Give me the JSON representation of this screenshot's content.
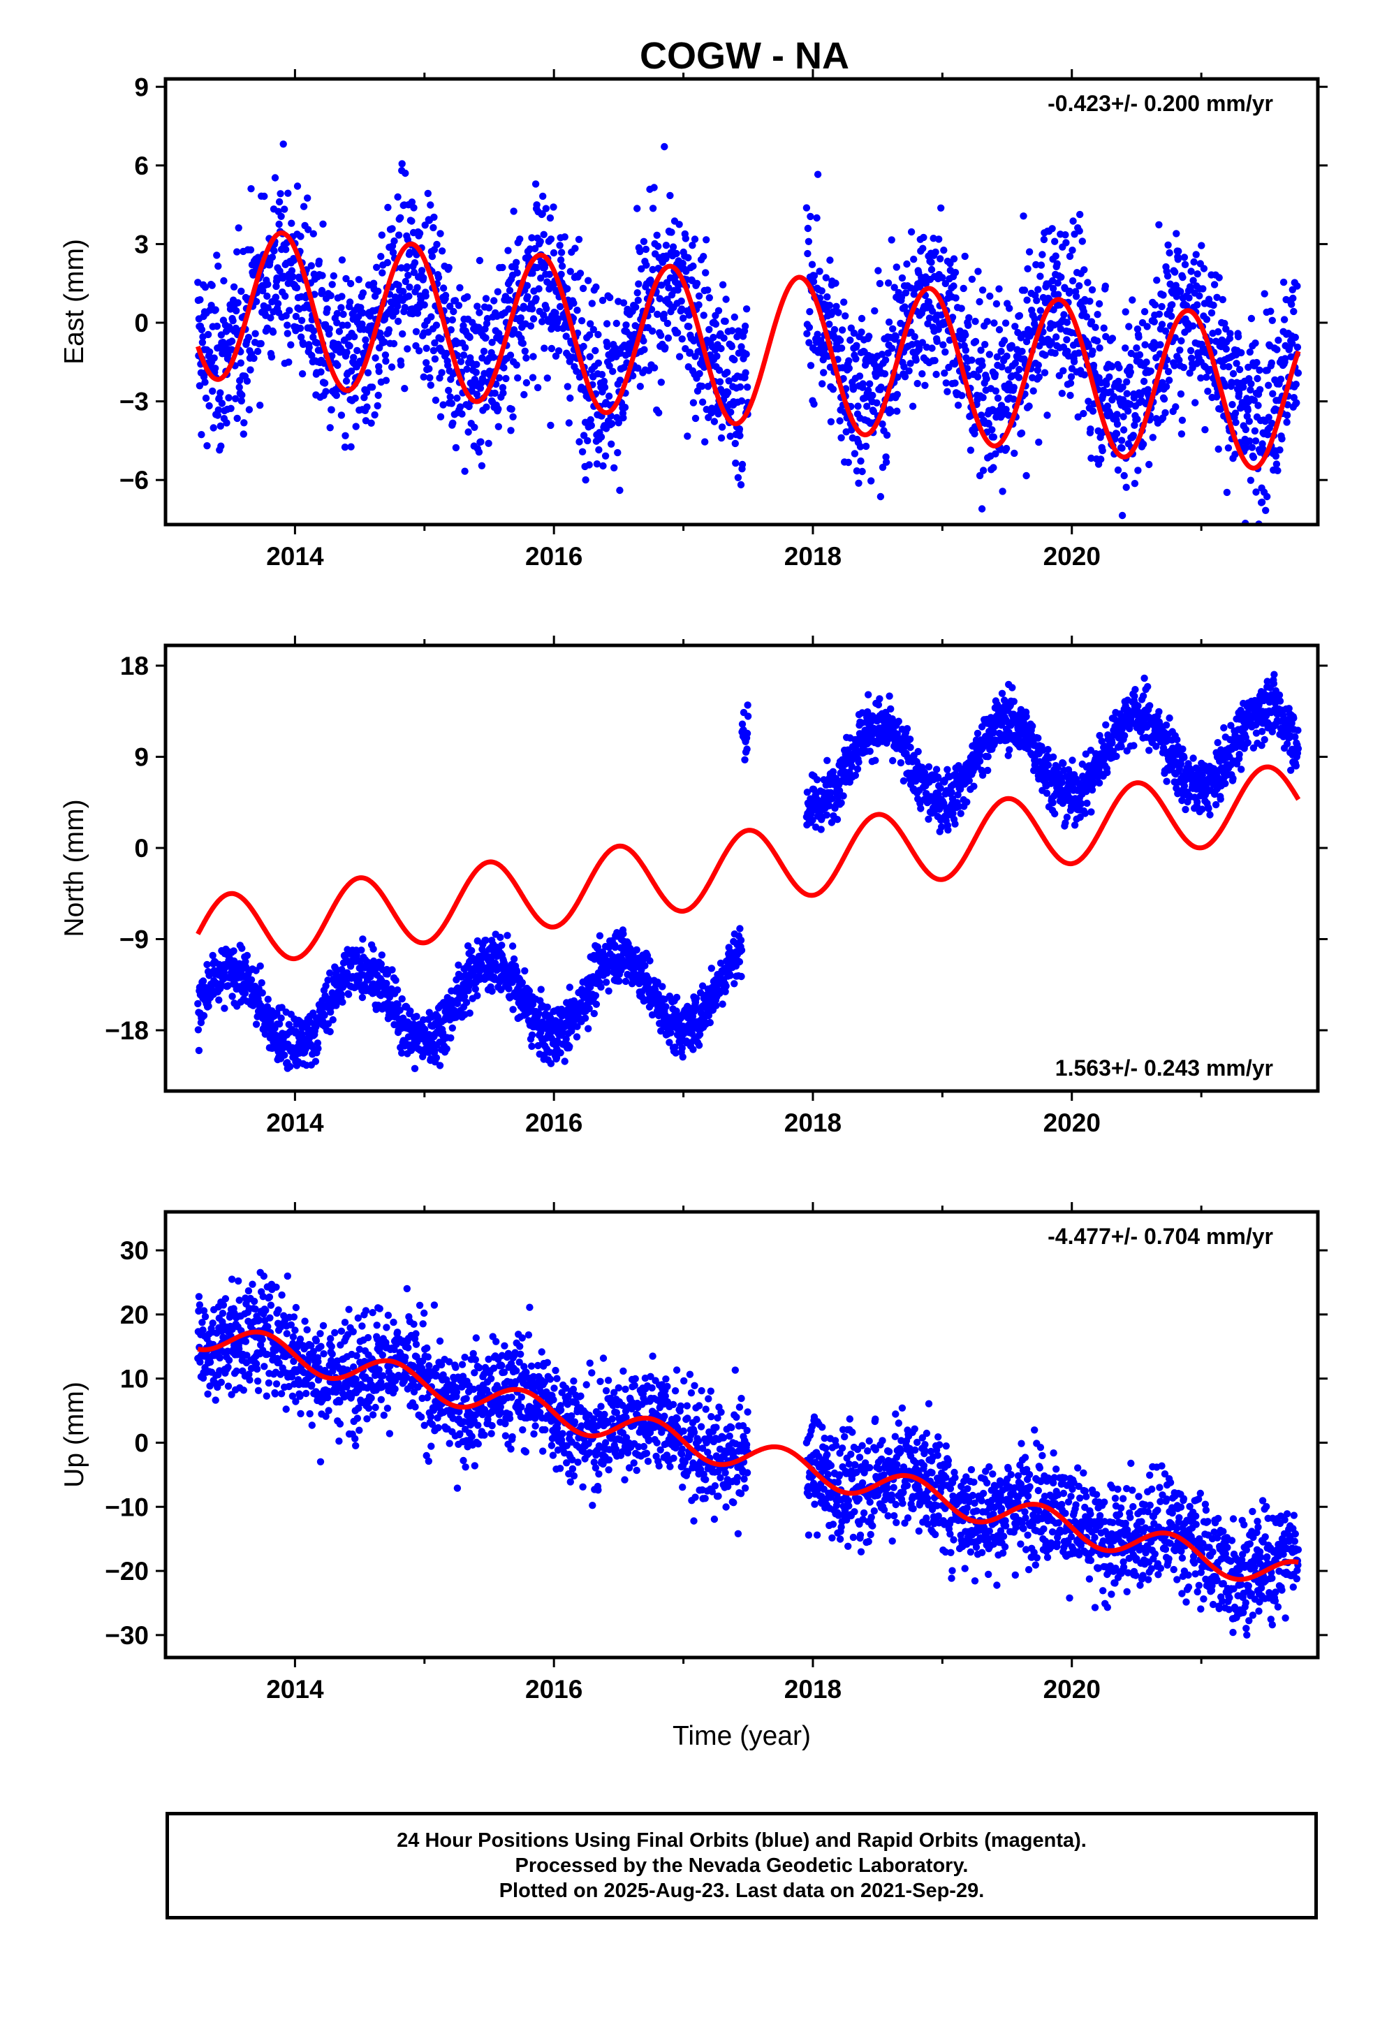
{
  "title": "COGW - NA",
  "colors": {
    "data": "#0000ff",
    "model": "#ff0000",
    "axes": "#000000"
  },
  "chart_data": [
    {
      "type": "scatter",
      "panel": "east",
      "ylabel": "East (mm)",
      "xlabel": "",
      "rate_label": "-0.423+/- 0.200 mm/yr",
      "rate_position": "top-right",
      "xlim": [
        2013.0,
        2021.9
      ],
      "ylim": [
        -7.7,
        9.3
      ],
      "xticks": [
        2014,
        2016,
        2018,
        2020
      ],
      "xtick_labels": [
        "2014",
        "2016",
        "2018",
        "2020"
      ],
      "yticks": [
        -6,
        -3,
        0,
        3,
        6,
        9
      ],
      "ytick_labels": [
        "−6",
        "−3",
        "0",
        "3",
        "6",
        "9"
      ],
      "grid": false,
      "data_gap": [
        2017.5,
        2017.95
      ],
      "series": [
        {
          "kind": "points",
          "trend": [
            2013.25,
            0.4,
            2021.75,
            -1.6
          ],
          "annual_amplitude": 1.9,
          "phase_year": 2013.9,
          "noise": 1.7
        },
        {
          "kind": "model",
          "rate": -0.423,
          "ref": [
            2013.25,
            0.8
          ],
          "annual_amplitude": 2.9,
          "phase_year": 2013.9
        }
      ]
    },
    {
      "type": "scatter",
      "panel": "north",
      "ylabel": "North (mm)",
      "xlabel": "",
      "rate_label": "1.563+/- 0.243 mm/yr",
      "rate_position": "bottom-right",
      "xlim": [
        2013.0,
        2021.9
      ],
      "ylim": [
        -24.0,
        20.0
      ],
      "xticks": [
        2014,
        2016,
        2018,
        2020
      ],
      "xtick_labels": [
        "2014",
        "2016",
        "2018",
        "2020"
      ],
      "yticks": [
        -18,
        -9,
        0,
        9,
        18
      ],
      "ytick_labels": [
        "−18",
        "−9",
        "0",
        "9",
        "18"
      ],
      "grid": false,
      "data_gap": [
        2017.5,
        2017.95
      ],
      "series": [
        {
          "kind": "points",
          "pre_offset_level": -15.0,
          "post_offset_level": 9.0,
          "offset_year": 2017.45,
          "trend_rate": 0.6,
          "annual_amplitude": 3.8,
          "phase_year": 2013.5,
          "noise": 1.4
        },
        {
          "kind": "model",
          "rate": 1.563,
          "ref": [
            2013.25,
            -8.5
          ],
          "annual_amplitude": 3.6,
          "phase_year": 2013.5
        }
      ]
    },
    {
      "type": "scatter",
      "panel": "up",
      "ylabel": "Up (mm)",
      "xlabel": "Time (year)",
      "rate_label": "-4.477+/- 0.704 mm/yr",
      "rate_position": "top-right",
      "xlim": [
        2013.0,
        2021.9
      ],
      "ylim": [
        -33.5,
        36.0
      ],
      "xticks": [
        2014,
        2016,
        2018,
        2020
      ],
      "xtick_labels": [
        "2014",
        "2016",
        "2018",
        "2020"
      ],
      "yticks": [
        -30,
        -20,
        -10,
        0,
        10,
        20,
        30
      ],
      "ytick_labels": [
        "−30",
        "−20",
        "−10",
        "0",
        "10",
        "20",
        "30"
      ],
      "grid": false,
      "data_gap": [
        2017.5,
        2017.95
      ],
      "series": [
        {
          "kind": "points",
          "trend": [
            2013.25,
            17.0,
            2021.75,
            -20.0
          ],
          "annual_amplitude": 2.4,
          "phase_year": 2013.75,
          "noise": 4.3
        },
        {
          "kind": "model",
          "rate": -4.477,
          "ref": [
            2013.25,
            17.0
          ],
          "annual_amplitude": 2.4,
          "phase_year": 2013.75
        }
      ]
    }
  ],
  "caption": {
    "line1": "24 Hour Positions Using Final Orbits (blue) and Rapid Orbits (magenta).",
    "line2": "Processed by the Nevada Geodetic Laboratory.",
    "line3": "Plotted on 2025-Aug-23. Last data on 2021-Sep-29."
  }
}
